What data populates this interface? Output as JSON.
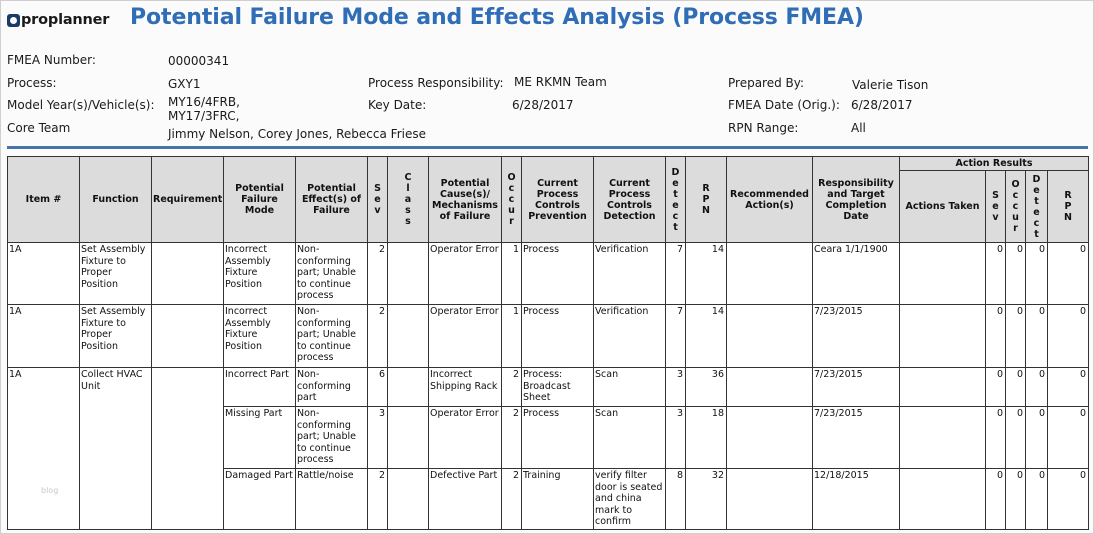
{
  "logo": {
    "text": "proplanner"
  },
  "title": "Potential Failure Mode and Effects Analysis (Process FMEA)",
  "header": {
    "fmea_number_label": "FMEA Number:",
    "fmea_number_value": "00000341",
    "process_label": "Process:",
    "process_value": "GXY1",
    "model_label": "Model Year(s)/Vehicle(s):",
    "model_value_1": "MY16/4FRB,",
    "model_value_2": "MY17/3FRC,",
    "core_team_label": "Core Team",
    "core_team_value": "Jimmy Nelson, Corey Jones, Rebecca Friese",
    "process_resp_label": "Process Responsibility:",
    "process_resp_value": "ME RKMN Team",
    "key_date_label": "Key Date:",
    "key_date_value": "6/28/2017",
    "prepared_by_label": "Prepared By:",
    "prepared_by_value": "Valerie Tison",
    "fmea_date_label": "FMEA Date (Orig.):",
    "fmea_date_value": "6/28/2017",
    "rpn_range_label": "RPN Range:",
    "rpn_range_value": "All"
  },
  "table": {
    "headers": {
      "item": "Item #",
      "function": "Function",
      "requirement": "Requirement",
      "failure_mode": "Potential Failure Mode",
      "effects": "Potential Effect(s) of Failure",
      "sev": "Sev",
      "class": "Class",
      "causes": "Potential Cause(s)/ Mechanisms of Failure",
      "occur": "Occur",
      "prevention": "Current Process Controls Prevention",
      "detection": "Current Process Controls Detection",
      "detect": "Detect",
      "rpn": "RPN",
      "recommended": "Recommended Action(s)",
      "responsibility": "Responsibility and Target Completion Date",
      "action_results": "Action Results",
      "actions_taken": "Actions Taken",
      "ar_sev": "Sev",
      "ar_occur": "Occur",
      "ar_detect": "Detect",
      "ar_rpn": "RPN"
    },
    "groups": [
      {
        "item": "1A",
        "function": "Set Assembly Fixture to Proper Position",
        "requirement": "",
        "rows": [
          {
            "failure_mode": "Incorrect Assembly Fixture Position",
            "effects": "Non-conforming part; Unable to continue process",
            "sev": "2",
            "class": "",
            "causes": "Operator Error",
            "occur": "1",
            "prevention": "Process",
            "detection": "Verification",
            "detect": "7",
            "rpn": "14",
            "recommended": "",
            "responsibility": "Ceara 1/1/1900",
            "actions_taken": "",
            "ar_sev": "0",
            "ar_occur": "0",
            "ar_detect": "0",
            "ar_rpn": "0"
          }
        ]
      },
      {
        "item": "1A",
        "function": "Set Assembly Fixture to Proper Position",
        "requirement": "",
        "rows": [
          {
            "failure_mode": "Incorrect Assembly Fixture Position",
            "effects": "Non-conforming part; Unable to continue process",
            "sev": "2",
            "class": "",
            "causes": "Operator Error",
            "occur": "1",
            "prevention": "Process",
            "detection": "Verification",
            "detect": "7",
            "rpn": "14",
            "recommended": "",
            "responsibility": "7/23/2015",
            "actions_taken": "",
            "ar_sev": "0",
            "ar_occur": "0",
            "ar_detect": "0",
            "ar_rpn": "0"
          }
        ]
      },
      {
        "item": "1A",
        "function": "Collect HVAC Unit",
        "requirement": "",
        "rows": [
          {
            "failure_mode": "Incorrect Part",
            "effects": "Non-conforming part",
            "sev": "6",
            "class": "",
            "causes": "Incorrect Shipping Rack",
            "occur": "2",
            "prevention": "Process: Broadcast Sheet",
            "detection": "Scan",
            "detect": "3",
            "rpn": "36",
            "recommended": "",
            "responsibility": "7/23/2015",
            "actions_taken": "",
            "ar_sev": "0",
            "ar_occur": "0",
            "ar_detect": "0",
            "ar_rpn": "0"
          },
          {
            "failure_mode": "Missing Part",
            "effects": "Non-conforming part; Unable to continue process",
            "sev": "3",
            "class": "",
            "causes": "Operator Error",
            "occur": "2",
            "prevention": "Process",
            "detection": "Scan",
            "detect": "3",
            "rpn": "18",
            "recommended": "",
            "responsibility": "7/23/2015",
            "actions_taken": "",
            "ar_sev": "0",
            "ar_occur": "0",
            "ar_detect": "0",
            "ar_rpn": "0"
          },
          {
            "failure_mode": "Damaged Part",
            "effects": "Rattle/noise",
            "sev": "2",
            "class": "",
            "causes": "Defective Part",
            "occur": "2",
            "prevention": "Training",
            "detection": "verify filter door is seated and china mark to confirm",
            "detect": "8",
            "rpn": "32",
            "recommended": "",
            "responsibility": "12/18/2015",
            "actions_taken": "",
            "ar_sev": "0",
            "ar_occur": "0",
            "ar_detect": "0",
            "ar_rpn": "0"
          }
        ]
      }
    ]
  },
  "watermark": "blog"
}
